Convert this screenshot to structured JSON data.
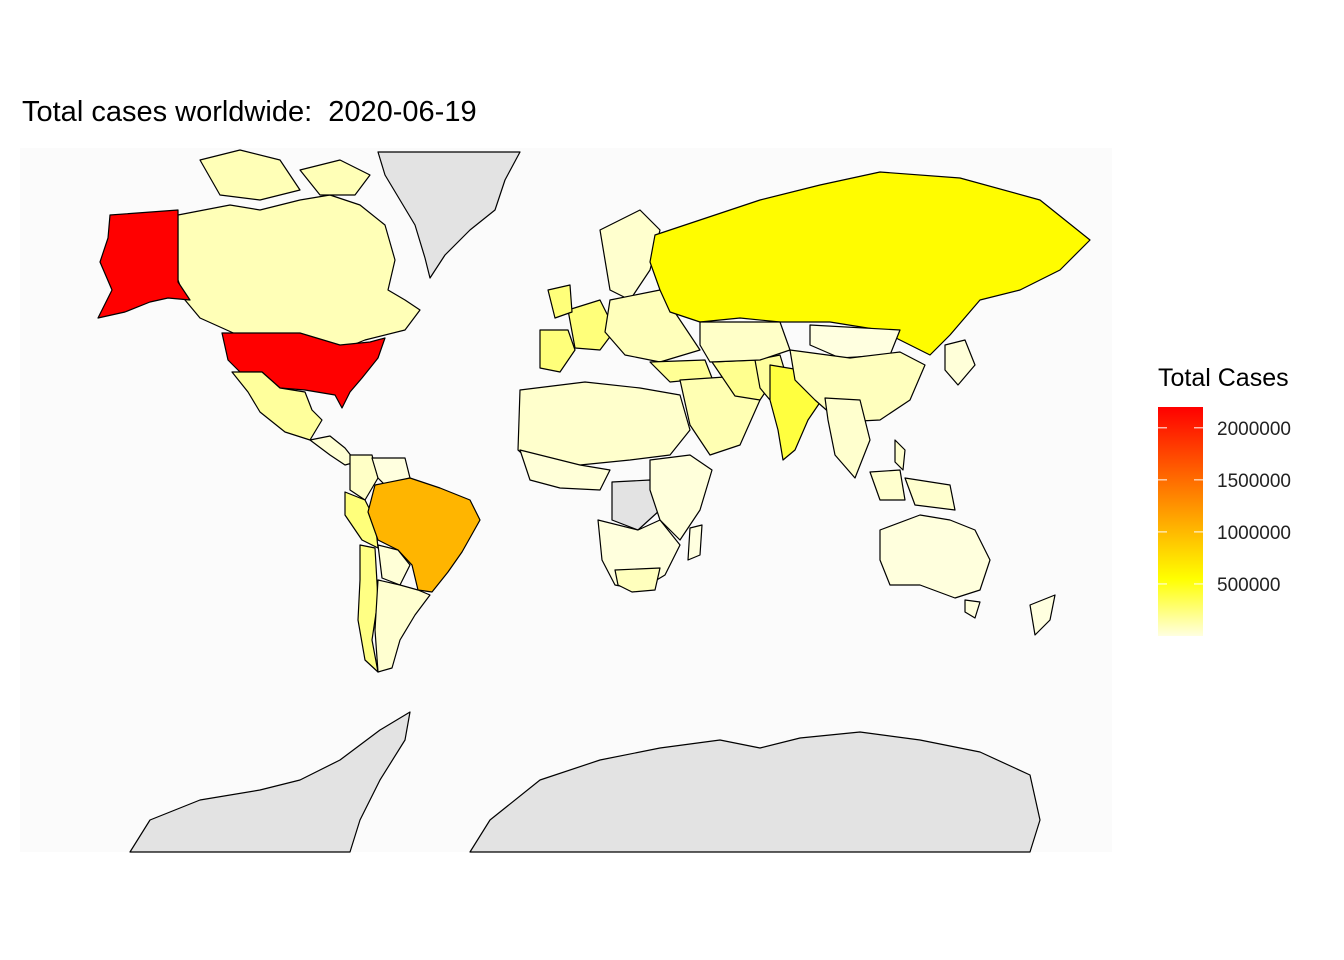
{
  "title": "Total cases worldwide:  2020-06-19",
  "legend": {
    "title": "Total Cases",
    "ticks": [
      {
        "value": 500000,
        "label": "500000"
      },
      {
        "value": 1000000,
        "label": "1000000"
      },
      {
        "value": 1500000,
        "label": "1500000"
      },
      {
        "value": 2000000,
        "label": "2000000"
      }
    ],
    "range": [
      0,
      2200000
    ],
    "colors": {
      "low": "#ffffe0",
      "mid": "#ffff00",
      "high": "#ff0000"
    }
  },
  "colors": {
    "ocean": "#fbfbfb",
    "no_data": "#e3e3e3",
    "border": "#000000"
  },
  "chart_data": {
    "type": "choropleth",
    "metric": "Total Cases",
    "date": "2020-06-19",
    "scale_range": [
      0,
      2200000
    ],
    "regions": [
      {
        "name": "United States",
        "value": 2200000
      },
      {
        "name": "Brazil",
        "value": 1030000
      },
      {
        "name": "Russia",
        "value": 570000
      },
      {
        "name": "India",
        "value": 395000
      },
      {
        "name": "United Kingdom",
        "value": 300000
      },
      {
        "name": "Spain",
        "value": 292000
      },
      {
        "name": "Peru",
        "value": 248000
      },
      {
        "name": "Italy",
        "value": 238000
      },
      {
        "name": "Chile",
        "value": 225000
      },
      {
        "name": "Iran",
        "value": 200000
      },
      {
        "name": "Germany",
        "value": 190000
      },
      {
        "name": "Turkey",
        "value": 185000
      },
      {
        "name": "Pakistan",
        "value": 165000
      },
      {
        "name": "Mexico",
        "value": 166000
      },
      {
        "name": "Saudi Arabia",
        "value": 150000
      },
      {
        "name": "France",
        "value": 159000
      },
      {
        "name": "Canada",
        "value": 100000
      },
      {
        "name": "China",
        "value": 84000
      },
      {
        "name": "South Africa",
        "value": 87000
      },
      {
        "name": "Australia",
        "value": 7400
      },
      {
        "name": "Greenland",
        "value": null
      },
      {
        "name": "Antarctica",
        "value": null
      },
      {
        "name": "DR Congo",
        "value": null
      }
    ]
  }
}
